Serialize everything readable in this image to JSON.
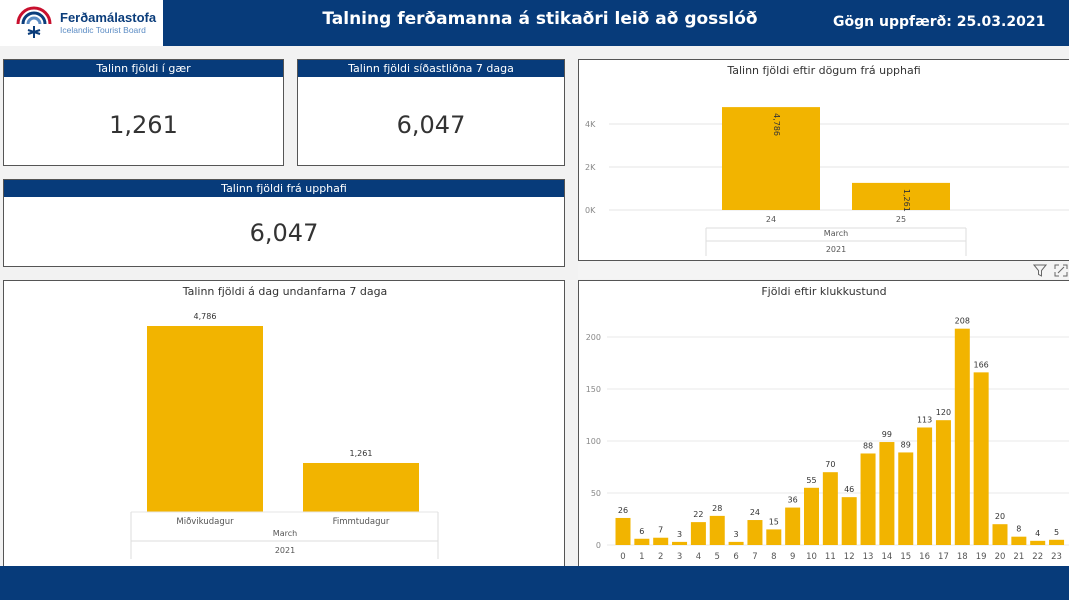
{
  "header": {
    "logo_name": "Ferðamálastofa",
    "logo_sub": "Icelandic Tourist Board",
    "title": "Talning ferðamanna á stikaðri leið að gosslóð",
    "updated": "Gögn uppfærð: 25.03.2021"
  },
  "cards": {
    "yesterday": {
      "label": "Talinn fjöldi í gær",
      "value": "1,261"
    },
    "last7": {
      "label": "Talinn fjöldi síðastliðna 7 daga",
      "value": "6,047"
    },
    "total": {
      "label": "Talinn fjöldi frá upphafi",
      "value": "6,047"
    }
  },
  "icons": [
    "filter-icon",
    "focus-mode-icon",
    "logo-sun-icon"
  ],
  "colors": {
    "bar": "#f2b400",
    "header": "#073b7a"
  },
  "chart_data": [
    {
      "id": "by_date",
      "type": "bar",
      "title": "Talinn fjöldi eftir dögum frá upphafi",
      "categories": [
        "24",
        "25"
      ],
      "values": [
        4786,
        1261
      ],
      "value_labels": [
        "4,786",
        "1,261"
      ],
      "hierarchy": {
        "month": "March",
        "year": "2021"
      },
      "yticks": [
        {
          "v": 0,
          "t": "0K"
        },
        {
          "v": 2000,
          "t": "2K"
        },
        {
          "v": 4000,
          "t": "4K"
        }
      ],
      "ylim": [
        0,
        5000
      ],
      "grid": true
    },
    {
      "id": "last7",
      "type": "bar",
      "title": "Talinn fjöldi á dag undanfarna 7 daga",
      "categories": [
        "Miðvikudagur",
        "Fimmtudagur"
      ],
      "values": [
        4786,
        1261
      ],
      "value_labels": [
        "4,786",
        "1,261"
      ],
      "hierarchy": {
        "month": "March",
        "year": "2021"
      },
      "ylim": [
        0,
        5000
      ],
      "grid": false
    },
    {
      "id": "by_hour",
      "type": "bar",
      "title": "Fjöldi eftir klukkustund",
      "categories": [
        "0",
        "1",
        "2",
        "3",
        "4",
        "5",
        "6",
        "7",
        "8",
        "9",
        "10",
        "11",
        "12",
        "13",
        "14",
        "15",
        "16",
        "17",
        "18",
        "19",
        "20",
        "21",
        "22",
        "23"
      ],
      "values": [
        26,
        6,
        7,
        3,
        22,
        28,
        3,
        24,
        15,
        36,
        55,
        70,
        46,
        88,
        99,
        89,
        113,
        120,
        208,
        166,
        20,
        8,
        4,
        5
      ],
      "yticks": [
        {
          "v": 0,
          "t": "0"
        },
        {
          "v": 50,
          "t": "50"
        },
        {
          "v": 100,
          "t": "100"
        },
        {
          "v": 150,
          "t": "150"
        },
        {
          "v": 200,
          "t": "200"
        }
      ],
      "ylim": [
        0,
        220
      ],
      "grid": true
    }
  ]
}
